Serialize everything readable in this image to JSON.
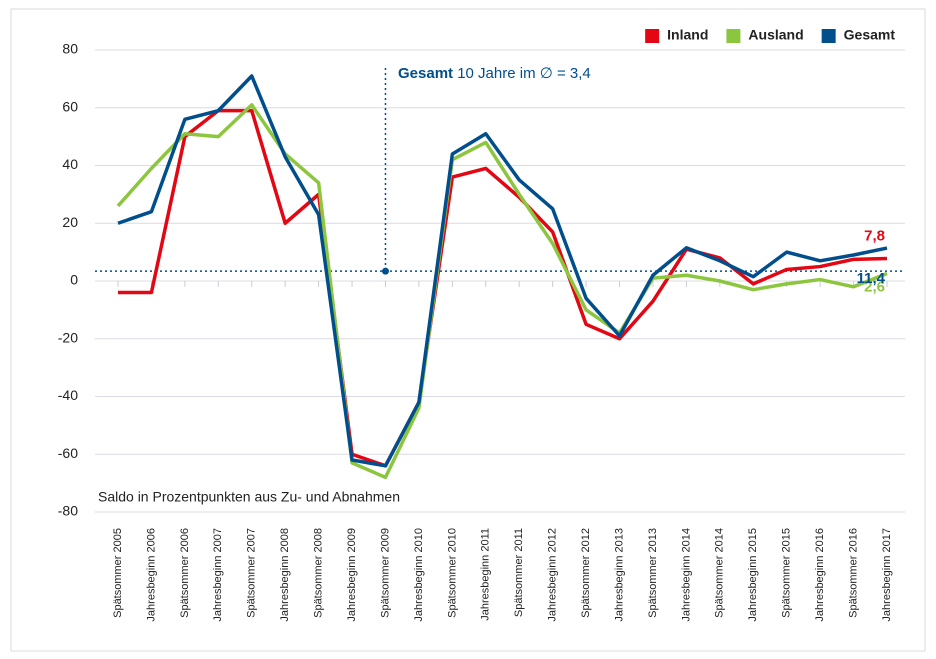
{
  "chart_data": {
    "type": "line",
    "categories": [
      "Spätsommer 2005",
      "Jahresbeginn 2006",
      "Spätsommer 2006",
      "Jahresbeginn 2007",
      "Spätsommer 2007",
      "Jahresbeginn 2008",
      "Spätsommer 2008",
      "Jahresbeginn 2009",
      "Spätsommer 2009",
      "Jahresbeginn 2010",
      "Spätsommer 2010",
      "Jahresbeginn 2011",
      "Spätsommer 2011",
      "Jahresbeginn 2012",
      "Spätsommer 2012",
      "Jahresbeginn 2013",
      "Spätsommer 2013",
      "Jahresbeginn 2014",
      "Spätsommer 2014",
      "Jahresbeginn 2015",
      "Spätsommer 2015",
      "Jahresbeginn 2016",
      "Spätsommer 2016",
      "Jahresbeginn 2017"
    ],
    "series": [
      {
        "name": "Inland",
        "color": "#e30613",
        "values": [
          -4,
          -4,
          50,
          59,
          59,
          20,
          30,
          -60,
          -64,
          -42,
          36,
          39,
          29,
          17,
          -15,
          -20,
          -7,
          11,
          8,
          -1,
          4,
          5,
          7.5,
          7.8
        ],
        "value_labels": [
          null,
          null,
          null,
          null,
          null,
          null,
          null,
          null,
          null,
          null,
          null,
          null,
          null,
          null,
          null,
          null,
          null,
          null,
          null,
          null,
          null,
          null,
          null,
          "7,8"
        ]
      },
      {
        "name": "Ausland",
        "color": "#8cc63e",
        "values": [
          26,
          39,
          51,
          50,
          61,
          44,
          34,
          -63,
          -68,
          -44,
          42,
          48,
          30,
          13,
          -10,
          -18,
          1,
          2,
          0,
          -3,
          -1,
          0.5,
          -2,
          2.6
        ],
        "value_labels": [
          null,
          null,
          null,
          null,
          null,
          null,
          null,
          null,
          null,
          null,
          null,
          null,
          null,
          null,
          null,
          null,
          null,
          null,
          null,
          null,
          null,
          null,
          null,
          "2,6"
        ]
      },
      {
        "name": "Gesamt",
        "color": "#004f8c",
        "values": [
          20,
          24,
          56,
          59,
          71,
          43,
          23,
          -62,
          -64,
          -42,
          44,
          51,
          35,
          25,
          -6,
          -19,
          2,
          11.5,
          7,
          1.5,
          10,
          7,
          9,
          11.4
        ],
        "value_labels": [
          null,
          null,
          null,
          null,
          null,
          null,
          null,
          null,
          null,
          null,
          null,
          null,
          null,
          null,
          null,
          null,
          null,
          null,
          null,
          null,
          null,
          null,
          null,
          "11,4"
        ]
      }
    ],
    "ylim": [
      -80,
      80
    ],
    "yticks": [
      -80,
      -60,
      -40,
      -20,
      0,
      20,
      40,
      60,
      80
    ],
    "grid": true,
    "legend": "top-right",
    "y_axis_label": "Saldo in Prozentpunkten aus Zu- und Abnahmen",
    "average": 3.4,
    "average_label_bold": "Gesamt",
    "average_label": "10 Jahre im ∅ = 3,4"
  }
}
